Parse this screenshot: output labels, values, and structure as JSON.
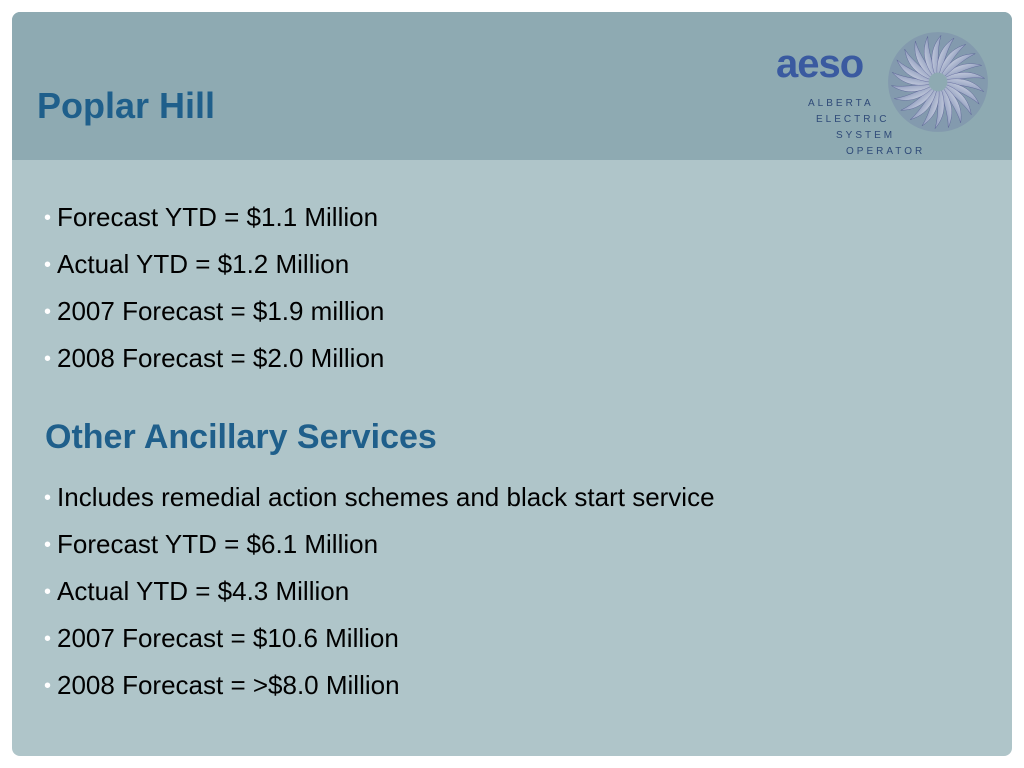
{
  "slide": {
    "title": "Poplar Hill",
    "logo": {
      "word": "aeso",
      "lines": [
        "ALBERTA",
        "ELECTRIC",
        "SYSTEM",
        "OPERATOR"
      ],
      "icon": "aeso-swirl-logo-icon"
    },
    "bullet_symbol": "•",
    "section1": {
      "items": [
        "Forecast YTD = $1.1 Million",
        "Actual YTD = $1.2 Million",
        "2007 Forecast = $1.9 million",
        "2008 Forecast = $2.0 Million"
      ]
    },
    "section2": {
      "heading": "Other Ancillary Services",
      "items": [
        "Includes remedial action schemes and black start service",
        "Forecast YTD = $6.1 Million",
        "Actual YTD = $4.3 Million",
        "2007 Forecast = $10.6 Million",
        "2008 Forecast = >$8.0 Million"
      ]
    }
  },
  "colors": {
    "background": "#afc5c9",
    "header_band": "#8eaab2",
    "title": "#1f5f8b",
    "bullet": "#ffffff",
    "text": "#000000",
    "logo_text": "#3a5aa0"
  }
}
